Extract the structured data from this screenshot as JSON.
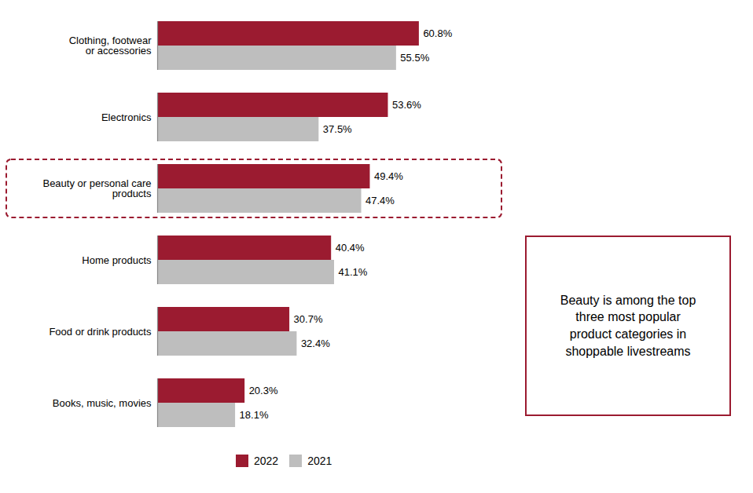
{
  "chart_data": {
    "type": "bar",
    "orientation": "horizontal",
    "categories": [
      "Clothing, footwear\nor accessories",
      "Electronics",
      "Beauty or personal care\nproducts",
      "Home products",
      "Food or drink products",
      "Books, music, movies"
    ],
    "series": [
      {
        "name": "2022",
        "color": "#9B1B30",
        "values": [
          60.8,
          53.6,
          49.4,
          40.4,
          30.7,
          20.3
        ],
        "value_labels": [
          "60.8%",
          "53.6%",
          "49.4%",
          "40.4%",
          "30.7%",
          "20.3%"
        ]
      },
      {
        "name": "2021",
        "color": "#BEBEBE",
        "values": [
          55.5,
          37.5,
          47.4,
          41.1,
          32.4,
          18.1
        ],
        "value_labels": [
          "55.5%",
          "37.5%",
          "47.4%",
          "41.1%",
          "32.4%",
          "18.1%"
        ]
      }
    ],
    "xlim": [
      0,
      80
    ],
    "tick_labels": "y",
    "data_labels": true,
    "legend": "bottom",
    "annotations": [
      {
        "text": "Beauty is among the top\nthree most popular\nproduct categories in\nshoppable livestreams",
        "category": "Beauty or personal care\nproducts"
      }
    ]
  }
}
